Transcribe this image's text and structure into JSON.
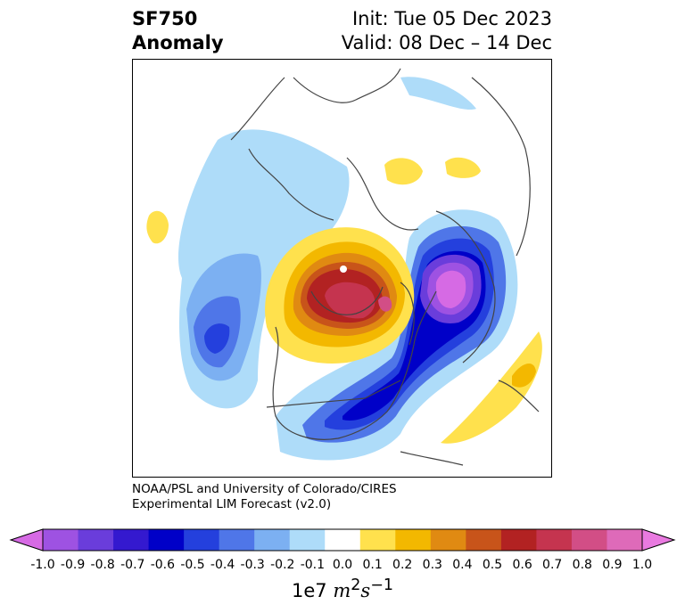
{
  "title": {
    "left_line1": "SF750",
    "left_line2": "Anomaly",
    "right_line1": "Init: Tue 05 Dec 2023",
    "right_line2": "Valid: 08 Dec – 14 Dec"
  },
  "credit": {
    "line1": "NOAA/PSL and University of Colorado/CIRES",
    "line2": "Experimental LIM Forecast (v2.0)"
  },
  "colorbar": {
    "ticks": [
      "-1.0",
      "-0.9",
      "-0.8",
      "-0.7",
      "-0.6",
      "-0.5",
      "-0.4",
      "-0.3",
      "-0.2",
      "-0.1",
      "0.0",
      "0.1",
      "0.2",
      "0.3",
      "0.4",
      "0.5",
      "0.6",
      "0.7",
      "0.8",
      "0.9",
      "1.0"
    ],
    "colors": [
      "#d66ae4",
      "#9e52e2",
      "#6a3ddb",
      "#3419cf",
      "#0000c8",
      "#2440dd",
      "#4f76e8",
      "#7cb0f2",
      "#aedcf9",
      "#ffffff",
      "#ffe14d",
      "#f3b800",
      "#e08a12",
      "#c8541a",
      "#b22222",
      "#c5344f",
      "#d24e86",
      "#de6ab9",
      "#e97ae0"
    ],
    "units_prefix": "1e7"
  },
  "anomaly_colors": {
    "neg_light": "#aedcf9",
    "neg_2": "#7cb0f2",
    "neg_3": "#4f76e8",
    "neg_4": "#2440dd",
    "neg_5": "#0000c8",
    "neg_6": "#3419cf",
    "neg_7": "#6a3ddb",
    "neg_8": "#9e52e2",
    "neg_9": "#d66ae4",
    "pos_1": "#ffe14d",
    "pos_2": "#f3b800",
    "pos_3": "#e08a12",
    "pos_4": "#c8541a",
    "pos_5": "#b22222",
    "pos_6": "#c5344f",
    "pos_7": "#d24e86"
  },
  "coastline_color": "#444444"
}
